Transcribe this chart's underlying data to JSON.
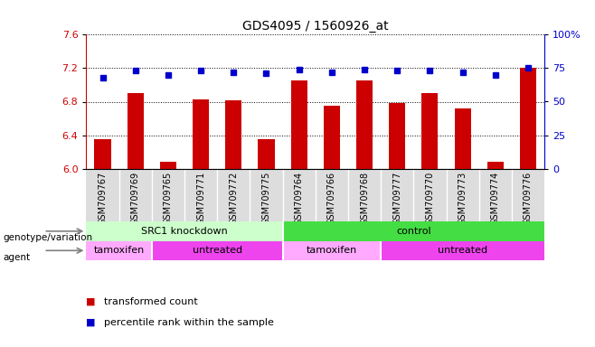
{
  "title": "GDS4095 / 1560926_at",
  "samples": [
    "GSM709767",
    "GSM709769",
    "GSM709765",
    "GSM709771",
    "GSM709772",
    "GSM709775",
    "GSM709764",
    "GSM709766",
    "GSM709768",
    "GSM709777",
    "GSM709770",
    "GSM709773",
    "GSM709774",
    "GSM709776"
  ],
  "transformed_count": [
    6.35,
    6.9,
    6.08,
    6.83,
    6.82,
    6.35,
    7.05,
    6.75,
    7.05,
    6.78,
    6.9,
    6.72,
    6.08,
    7.2
  ],
  "percentile_rank": [
    68,
    73,
    70,
    73,
    72,
    71,
    74,
    72,
    74,
    73,
    73,
    72,
    70,
    75
  ],
  "ylim_left": [
    6.0,
    7.6
  ],
  "ylim_right": [
    0,
    100
  ],
  "yticks_left": [
    6.0,
    6.4,
    6.8,
    7.2,
    7.6
  ],
  "yticks_right": [
    0,
    25,
    50,
    75,
    100
  ],
  "bar_color": "#cc0000",
  "dot_color": "#0000cc",
  "background_color": "#ffffff",
  "plot_bg_color": "#ffffff",
  "grid_color": "#000000",
  "genotype_groups": [
    {
      "label": "SRC1 knockdown",
      "start": 0,
      "end": 6,
      "color": "#ccffcc"
    },
    {
      "label": "control",
      "start": 6,
      "end": 14,
      "color": "#44dd44"
    }
  ],
  "agent_groups": [
    {
      "label": "tamoxifen",
      "start": 0,
      "end": 2,
      "color": "#ffaaff"
    },
    {
      "label": "untreated",
      "start": 2,
      "end": 6,
      "color": "#ee44ee"
    },
    {
      "label": "tamoxifen",
      "start": 6,
      "end": 9,
      "color": "#ffaaff"
    },
    {
      "label": "untreated",
      "start": 9,
      "end": 14,
      "color": "#ee44ee"
    }
  ],
  "sample_bg_color": "#dddddd",
  "left_label": "genotype/variation",
  "agent_label": "agent",
  "legend_items": [
    {
      "label": "transformed count",
      "color": "#cc0000"
    },
    {
      "label": "percentile rank within the sample",
      "color": "#0000cc"
    }
  ],
  "left_axis_color": "#cc0000",
  "right_axis_color": "#0000cc",
  "title_fontsize": 10,
  "tick_fontsize": 8,
  "annot_fontsize": 8,
  "sample_fontsize": 7
}
